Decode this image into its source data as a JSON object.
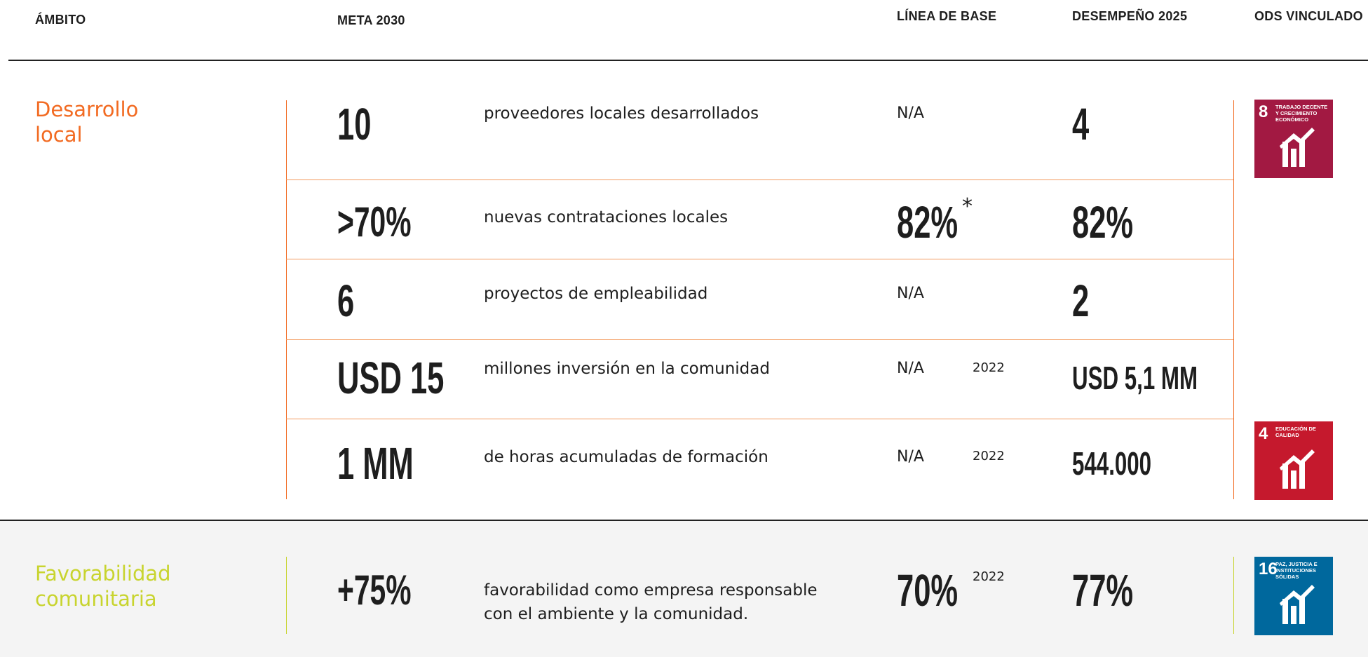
{
  "header": [
    "ÁMBITO",
    "META 2030",
    "LÍNEA DE BASE",
    "DESEMPEÑO 2025",
    "ODS VINCULADO"
  ],
  "sections": [
    {
      "name": "Desarrollo local",
      "rows": [
        {
          "meta": "10",
          "description": "proveedores locales desarrollados",
          "baseline": "N/A",
          "performance": "4"
        },
        {
          "meta": ">70%",
          "description": "nuevas contrataciones locales",
          "baseline": "82%",
          "baseline_note": "*",
          "performance": "82%"
        },
        {
          "meta": "6",
          "description": "proyectos de empleabilidad",
          "baseline": "N/A",
          "performance": "2"
        },
        {
          "meta": "USD 15",
          "description": "millones inversión en la comunidad",
          "baseline": "N/A",
          "baseline_year": "2022",
          "performance": "USD 5,1 MM"
        },
        {
          "meta": "1 MM",
          "description": "de horas acumuladas de formación",
          "baseline": "N/A",
          "baseline_year": "2022",
          "performance": "544.000"
        }
      ],
      "ods": [
        {
          "number": "8",
          "label": "Trabajo decente y crecimiento económico"
        },
        {
          "number": "4",
          "label": "Educación de calidad"
        }
      ]
    },
    {
      "name": "Favorabilidad comunitaria",
      "rows": [
        {
          "meta": "+75%",
          "description": "favorabilidad como empresa responsable con el ambiente y la comunidad.",
          "baseline": "70%",
          "baseline_year": "2022",
          "performance": "77%"
        }
      ],
      "ods": [
        {
          "number": "16",
          "label": "Paz, justicia e instituciones sólidas"
        }
      ]
    }
  ]
}
